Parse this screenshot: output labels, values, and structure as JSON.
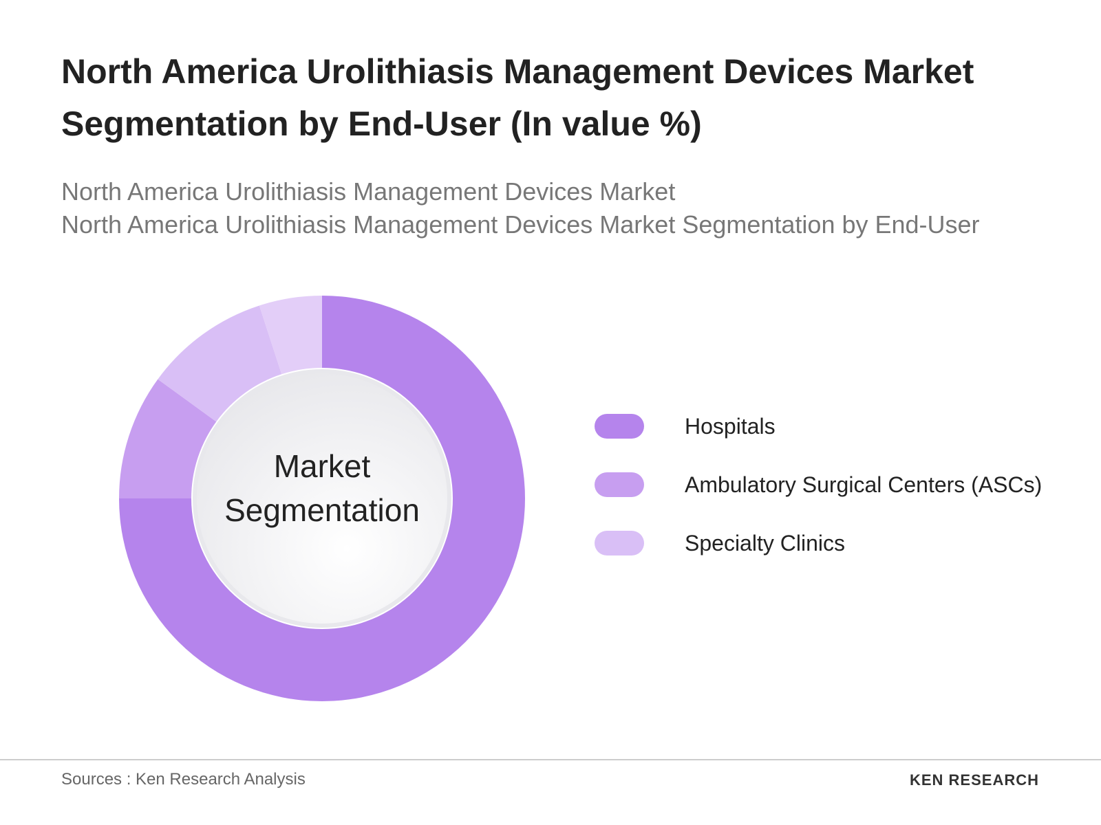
{
  "chart_data": {
    "type": "donut",
    "title": "North America Urolithiasis Management Devices Market Segmentation by End-User (In value %)",
    "subtitle": [
      "North America Urolithiasis Management Devices Market",
      "North America Urolithiasis Management Devices Market Segmentation by End-User"
    ],
    "center_label": "Market Segmentation",
    "categories": [
      "Hospitals",
      "Ambulatory Surgical Centers (ASCs)",
      "Specialty Clinics",
      null
    ],
    "values": [
      75,
      10,
      10,
      5
    ],
    "colors": [
      "#b584ec",
      "#c79ef0",
      "#d9bff6",
      "#e3cef8"
    ]
  },
  "footer": {
    "source": "Sources : Ken Research Analysis",
    "brand": "KEN RESEARCH"
  }
}
